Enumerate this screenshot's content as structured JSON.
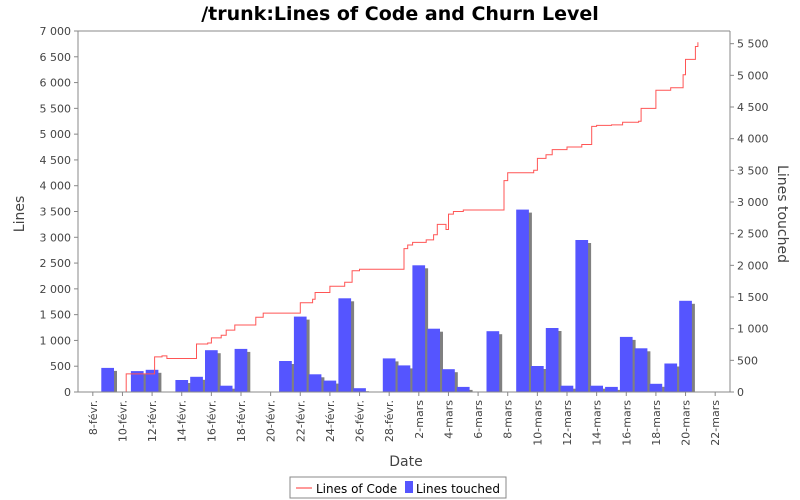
{
  "chart_data": {
    "type": "bar+line",
    "title": "/trunk:Lines of Code and Churn Level",
    "xlabel": "Date",
    "ylabel_left": "Lines",
    "ylabel_right": "Lines touched",
    "x_start": "2009-02-07",
    "x_end": "2009-03-23",
    "x_tick_dates": [
      "2009-02-08",
      "2009-02-10",
      "2009-02-12",
      "2009-02-14",
      "2009-02-16",
      "2009-02-18",
      "2009-02-20",
      "2009-02-22",
      "2009-02-24",
      "2009-02-26",
      "2009-02-28",
      "2009-03-02",
      "2009-03-04",
      "2009-03-06",
      "2009-03-08",
      "2009-03-10",
      "2009-03-12",
      "2009-03-14",
      "2009-03-16",
      "2009-03-18",
      "2009-03-20",
      "2009-03-22"
    ],
    "x_tick_labels": [
      "8-févr.",
      "10-févr.",
      "12-févr.",
      "14-févr.",
      "16-févr.",
      "18-févr.",
      "20-févr.",
      "22-févr.",
      "24-févr.",
      "26-févr.",
      "28-févr.",
      "2-mars",
      "4-mars",
      "6-mars",
      "8-mars",
      "10-mars",
      "12-mars",
      "14-mars",
      "16-mars",
      "18-mars",
      "20-mars",
      "22-mars"
    ],
    "y_left_range": [
      0,
      7000
    ],
    "y_left_ticks": [
      0,
      500,
      1000,
      1500,
      2000,
      2500,
      3000,
      3500,
      4000,
      4500,
      5000,
      5500,
      6000,
      6500,
      7000
    ],
    "y_left_tick_labels": [
      "0",
      "500",
      "1 000",
      "1 500",
      "2 000",
      "2 500",
      "3 000",
      "3 500",
      "4 000",
      "4 500",
      "5 000",
      "5 500",
      "6 000",
      "6 500",
      "7 000"
    ],
    "y_right_range": [
      0,
      5700
    ],
    "y_right_ticks": [
      0,
      500,
      1000,
      1500,
      2000,
      2500,
      3000,
      3500,
      4000,
      4500,
      5000,
      5500
    ],
    "y_right_tick_labels": [
      "0",
      "500",
      "1 000",
      "1 500",
      "2 000",
      "2 500",
      "3 000",
      "3 500",
      "4 000",
      "4 500",
      "5 000",
      "5 500"
    ],
    "legend": {
      "placement": "bottom-center",
      "line_label": "Lines of Code",
      "bar_label": "Lines touched"
    },
    "colors": {
      "line": "#ff5555",
      "bar": "#5555ff",
      "bar_shadow": "#808080",
      "grid": "#ffffff",
      "background": "#ffffff",
      "axis": "#888888"
    },
    "series": [
      {
        "name": "Lines of Code",
        "type": "step-line",
        "axis": "left",
        "points": [
          [
            "2009-02-10",
            0
          ],
          [
            "2009-02-10T06",
            350
          ],
          [
            "2009-02-12",
            350
          ],
          [
            "2009-02-12T04",
            680
          ],
          [
            "2009-02-12T16",
            700
          ],
          [
            "2009-02-13",
            650
          ],
          [
            "2009-02-14T14",
            650
          ],
          [
            "2009-02-15",
            930
          ],
          [
            "2009-02-15T18",
            950
          ],
          [
            "2009-02-16",
            1050
          ],
          [
            "2009-02-16T16",
            1100
          ],
          [
            "2009-02-17",
            1200
          ],
          [
            "2009-02-17T14",
            1300
          ],
          [
            "2009-02-19",
            1450
          ],
          [
            "2009-02-19T12",
            1530
          ],
          [
            "2009-02-22",
            1730
          ],
          [
            "2009-02-22T20",
            1800
          ],
          [
            "2009-02-23",
            1930
          ],
          [
            "2009-02-24",
            2050
          ],
          [
            "2009-02-25",
            2130
          ],
          [
            "2009-02-25T12",
            2350
          ],
          [
            "2009-02-26",
            2380
          ],
          [
            "2009-03-01",
            2780
          ],
          [
            "2009-03-01T06",
            2850
          ],
          [
            "2009-03-01T14",
            2900
          ],
          [
            "2009-03-02T12",
            2950
          ],
          [
            "2009-03-03",
            3050
          ],
          [
            "2009-03-03T06",
            3250
          ],
          [
            "2009-03-03T20",
            3150
          ],
          [
            "2009-03-04",
            3450
          ],
          [
            "2009-03-04T08",
            3500
          ],
          [
            "2009-03-05",
            3530
          ],
          [
            "2009-03-07T18",
            4100
          ],
          [
            "2009-03-08",
            4250
          ],
          [
            "2009-03-09T18",
            4300
          ],
          [
            "2009-03-10",
            4530
          ],
          [
            "2009-03-10T14",
            4600
          ],
          [
            "2009-03-11",
            4700
          ],
          [
            "2009-03-12",
            4750
          ],
          [
            "2009-03-13",
            4800
          ],
          [
            "2009-03-13T16",
            5150
          ],
          [
            "2009-03-14",
            5170
          ],
          [
            "2009-03-15",
            5180
          ],
          [
            "2009-03-15T18",
            5230
          ],
          [
            "2009-03-16T20",
            5250
          ],
          [
            "2009-03-17",
            5500
          ],
          [
            "2009-03-18",
            5850
          ],
          [
            "2009-03-19",
            5900
          ],
          [
            "2009-03-19T20",
            6150
          ],
          [
            "2009-03-20",
            6450
          ],
          [
            "2009-03-20T12",
            6450
          ],
          [
            "2009-03-20T16",
            6700
          ],
          [
            "2009-03-20T20",
            6780
          ]
        ]
      },
      {
        "name": "Lines touched",
        "type": "bar",
        "axis": "right",
        "points": [
          [
            "2009-02-09",
            380
          ],
          [
            "2009-02-11",
            330
          ],
          [
            "2009-02-12",
            350
          ],
          [
            "2009-02-14",
            190
          ],
          [
            "2009-02-15",
            240
          ],
          [
            "2009-02-16",
            660
          ],
          [
            "2009-02-17",
            100
          ],
          [
            "2009-02-18",
            680
          ],
          [
            "2009-02-21",
            490
          ],
          [
            "2009-02-22",
            1190
          ],
          [
            "2009-02-23",
            280
          ],
          [
            "2009-02-24",
            180
          ],
          [
            "2009-02-25",
            1480
          ],
          [
            "2009-02-26",
            60
          ],
          [
            "2009-02-28",
            530
          ],
          [
            "2009-03-01",
            420
          ],
          [
            "2009-03-02",
            2000
          ],
          [
            "2009-03-03",
            1000
          ],
          [
            "2009-03-04",
            360
          ],
          [
            "2009-03-05",
            80
          ],
          [
            "2009-03-07",
            960
          ],
          [
            "2009-03-09",
            2880
          ],
          [
            "2009-03-10",
            410
          ],
          [
            "2009-03-11",
            1010
          ],
          [
            "2009-03-12",
            100
          ],
          [
            "2009-03-13",
            2400
          ],
          [
            "2009-03-14",
            100
          ],
          [
            "2009-03-15",
            80
          ],
          [
            "2009-03-16",
            870
          ],
          [
            "2009-03-17",
            690
          ],
          [
            "2009-03-18",
            130
          ],
          [
            "2009-03-19",
            450
          ],
          [
            "2009-03-20",
            1440
          ]
        ]
      }
    ]
  }
}
